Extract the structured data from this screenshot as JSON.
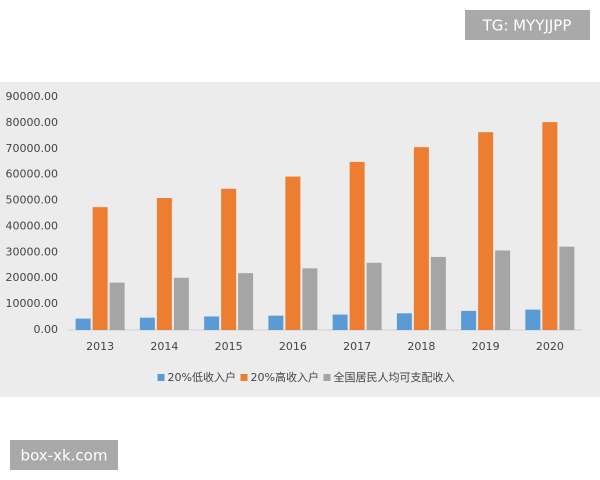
{
  "chart_data": {
    "type": "bar",
    "categories": [
      "2013",
      "2014",
      "2015",
      "2016",
      "2017",
      "2018",
      "2019",
      "2020"
    ],
    "series": [
      {
        "name": "20%低收入户",
        "color": "#5b9bd5",
        "values": [
          4402,
          4747,
          5221,
          5529,
          5958,
          6440,
          7380,
          7869
        ]
      },
      {
        "name": "20%高收入户",
        "color": "#ed7d31",
        "values": [
          47457,
          50968,
          54544,
          59259,
          64934,
          70640,
          76401,
          80294
        ]
      },
      {
        "name": "全国居民人均可支配收入",
        "color": "#a5a5a5",
        "values": [
          18311,
          20167,
          21966,
          23821,
          25974,
          28228,
          30733,
          32189
        ]
      }
    ],
    "ylim": [
      0,
      90000
    ],
    "yticks": [
      {
        "value": 0,
        "label": "0.00"
      },
      {
        "value": 10000,
        "label": "10000.00"
      },
      {
        "value": 20000,
        "label": "20000.00"
      },
      {
        "value": 30000,
        "label": "30000.00"
      },
      {
        "value": 40000,
        "label": "40000.00"
      },
      {
        "value": 50000,
        "label": "50000.00"
      },
      {
        "value": 60000,
        "label": "60000.00"
      },
      {
        "value": 70000,
        "label": "70000.00"
      },
      {
        "value": 80000,
        "label": "80000.00"
      },
      {
        "value": 90000,
        "label": "90000.00"
      }
    ],
    "grid": false,
    "legend": "bottom"
  },
  "watermarks": [
    "TG: MYYJJPP",
    "box-xk.com"
  ]
}
